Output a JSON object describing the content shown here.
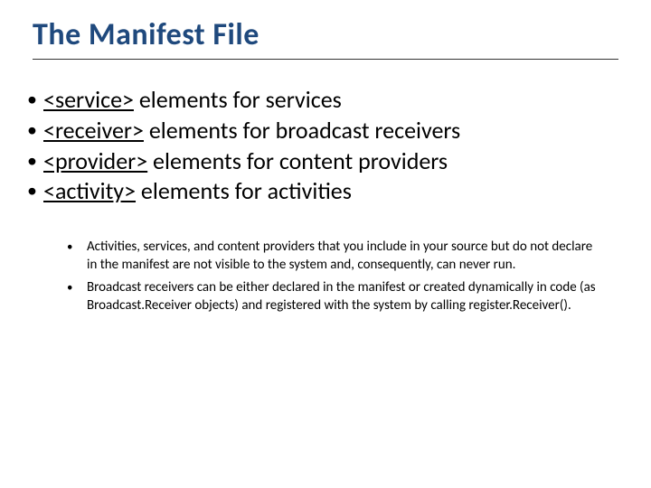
{
  "title": "The Manifest File",
  "colors": {
    "title_color": "#1f497d",
    "text_color": "#000000",
    "underline_color": "#333333",
    "background": "#ffffff"
  },
  "typography": {
    "title_fontsize": 34,
    "title_weight": 700,
    "main_item_fontsize": 26,
    "sub_item_fontsize": 15,
    "font_family": "Calibri"
  },
  "main_items": [
    {
      "link": "<service>",
      "rest": " elements for services"
    },
    {
      "link": "<receiver>",
      "rest": " elements for broadcast receivers"
    },
    {
      "link": "<provider>",
      "rest": " elements for content providers"
    },
    {
      "link": "<activity>",
      "rest": " elements for activities"
    }
  ],
  "sub_items": [
    "Activities, services, and content providers that you include in your source but do not declare in the manifest are not visible to the system and, consequently, can never run.",
    "Broadcast receivers can be either declared in the manifest or created dynamically in code (as Broadcast.Receiver objects) and registered with the system by calling register.Receiver()."
  ]
}
